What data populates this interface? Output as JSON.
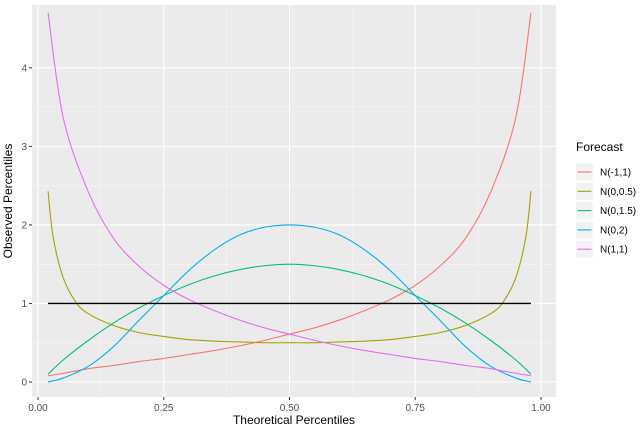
{
  "chart_data": {
    "type": "line",
    "xlabel": "Theoretical Percentiles",
    "ylabel": "Observed Percentiles",
    "xlim": [
      0,
      1
    ],
    "ylim": [
      0,
      4.8
    ],
    "x_ticks": [
      "0.00",
      "0.25",
      "0.50",
      "0.75",
      "1.00"
    ],
    "y_ticks": [
      "0",
      "1",
      "2",
      "3",
      "4"
    ],
    "grid": true,
    "legend": {
      "title": "Forecast",
      "position": "right"
    },
    "series": [
      {
        "name": "N(-1,1)",
        "color": "#F8766D",
        "x": [
          0.02,
          0.05,
          0.1,
          0.15,
          0.2,
          0.25,
          0.3,
          0.35,
          0.4,
          0.45,
          0.5,
          0.55,
          0.6,
          0.65,
          0.7,
          0.75,
          0.8,
          0.85,
          0.9,
          0.95,
          0.98
        ],
        "y": [
          0.08,
          0.11,
          0.17,
          0.21,
          0.26,
          0.3,
          0.35,
          0.4,
          0.46,
          0.53,
          0.61,
          0.69,
          0.79,
          0.91,
          1.05,
          1.23,
          1.48,
          1.83,
          2.42,
          3.37,
          4.7
        ]
      },
      {
        "name": "N(0,0.5)",
        "color": "#A3A500",
        "x": [
          0.02,
          0.03,
          0.05,
          0.075,
          0.1,
          0.15,
          0.2,
          0.25,
          0.3,
          0.35,
          0.4,
          0.45,
          0.5,
          0.55,
          0.6,
          0.65,
          0.7,
          0.75,
          0.8,
          0.85,
          0.9,
          0.925,
          0.95,
          0.97,
          0.98
        ],
        "y": [
          2.43,
          1.85,
          1.33,
          1.02,
          0.87,
          0.72,
          0.63,
          0.58,
          0.54,
          0.52,
          0.51,
          0.5,
          0.5,
          0.5,
          0.51,
          0.52,
          0.54,
          0.58,
          0.63,
          0.72,
          0.87,
          1.02,
          1.33,
          1.85,
          2.43
        ]
      },
      {
        "name": "N(0,1.5)",
        "color": "#00BF7D",
        "x": [
          0.02,
          0.05,
          0.1,
          0.15,
          0.2,
          0.25,
          0.3,
          0.35,
          0.4,
          0.45,
          0.5,
          0.55,
          0.6,
          0.65,
          0.7,
          0.75,
          0.8,
          0.85,
          0.9,
          0.95,
          0.98
        ],
        "y": [
          0.1,
          0.28,
          0.53,
          0.75,
          0.94,
          1.1,
          1.24,
          1.35,
          1.43,
          1.48,
          1.5,
          1.48,
          1.43,
          1.35,
          1.24,
          1.1,
          0.94,
          0.75,
          0.53,
          0.28,
          0.1
        ]
      },
      {
        "name": "N(0,2)",
        "color": "#00B0F6",
        "x": [
          0.02,
          0.05,
          0.1,
          0.15,
          0.2,
          0.25,
          0.3,
          0.35,
          0.4,
          0.45,
          0.5,
          0.55,
          0.6,
          0.65,
          0.7,
          0.75,
          0.8,
          0.85,
          0.9,
          0.95,
          0.98
        ],
        "y": [
          0.0,
          0.05,
          0.2,
          0.45,
          0.78,
          1.1,
          1.42,
          1.68,
          1.87,
          1.97,
          2.0,
          1.97,
          1.87,
          1.68,
          1.42,
          1.1,
          0.78,
          0.45,
          0.2,
          0.05,
          0.0
        ]
      },
      {
        "name": "N(1,1)",
        "color": "#E76BF3",
        "x": [
          0.02,
          0.05,
          0.1,
          0.15,
          0.2,
          0.25,
          0.3,
          0.35,
          0.4,
          0.45,
          0.5,
          0.55,
          0.6,
          0.65,
          0.7,
          0.75,
          0.8,
          0.85,
          0.9,
          0.95,
          0.98
        ],
        "y": [
          4.7,
          3.37,
          2.42,
          1.83,
          1.48,
          1.23,
          1.05,
          0.91,
          0.79,
          0.69,
          0.61,
          0.53,
          0.46,
          0.4,
          0.35,
          0.3,
          0.26,
          0.21,
          0.17,
          0.11,
          0.08
        ]
      }
    ],
    "reference_line": {
      "color": "#000000",
      "x": [
        0.02,
        0.98
      ],
      "y": [
        1,
        1
      ]
    }
  }
}
